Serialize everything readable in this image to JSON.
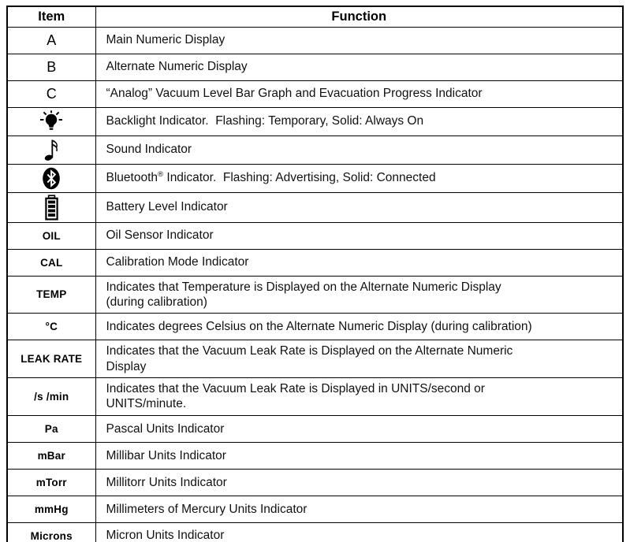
{
  "table": {
    "headers": {
      "item": "Item",
      "function": "Function"
    },
    "rows": [
      {
        "item": "A",
        "item_type": "letter",
        "function": "Main Numeric Display"
      },
      {
        "item": "B",
        "item_type": "letter",
        "function": "Alternate Numeric Display"
      },
      {
        "item": "C",
        "item_type": "letter",
        "function": "“Analog” Vacuum Level Bar Graph and Evacuation Progress Indicator"
      },
      {
        "item_type": "icon",
        "icon": "backlight-icon",
        "function": "Backlight Indicator.  Flashing: Temporary, Solid: Always On"
      },
      {
        "item_type": "icon",
        "icon": "sound-icon",
        "function": "Sound Indicator"
      },
      {
        "item_type": "icon",
        "icon": "bluetooth-icon",
        "function": "Bluetooth® Indicator.  Flashing: Advertising, Solid: Connected"
      },
      {
        "item_type": "icon",
        "icon": "battery-icon",
        "function": "Battery Level Indicator"
      },
      {
        "item": "OIL",
        "item_type": "label",
        "function": "Oil Sensor Indicator"
      },
      {
        "item": "CAL",
        "item_type": "label",
        "function": "Calibration Mode Indicator"
      },
      {
        "item": "TEMP",
        "item_type": "label",
        "function": "Indicates that Temperature is Displayed on the Alternate Numeric Display\n(during calibration)"
      },
      {
        "item": "°C",
        "item_type": "label",
        "function": "Indicates degrees Celsius on the Alternate Numeric Display (during calibration)"
      },
      {
        "item": "LEAK RATE",
        "item_type": "label",
        "function": "Indicates that the Vacuum Leak Rate is Displayed on the Alternate Numeric\nDisplay"
      },
      {
        "item": "/s /min",
        "item_type": "label",
        "function": "Indicates that the Vacuum Leak Rate is Displayed in UNITS/second or\nUNITS/minute."
      },
      {
        "item": "Pa",
        "item_type": "label",
        "function": "Pascal Units Indicator"
      },
      {
        "item": "mBar",
        "item_type": "label",
        "function": "Millibar Units Indicator"
      },
      {
        "item": "mTorr",
        "item_type": "label",
        "function": "Millitorr Units Indicator"
      },
      {
        "item": "mmHg",
        "item_type": "label",
        "function": "Millimeters of Mercury Units Indicator"
      },
      {
        "item": "Microns",
        "item_type": "label",
        "function": "Micron Units Indicator"
      }
    ],
    "colors": {
      "border": "#000000",
      "text": "#111111",
      "background": "#ffffff"
    }
  }
}
